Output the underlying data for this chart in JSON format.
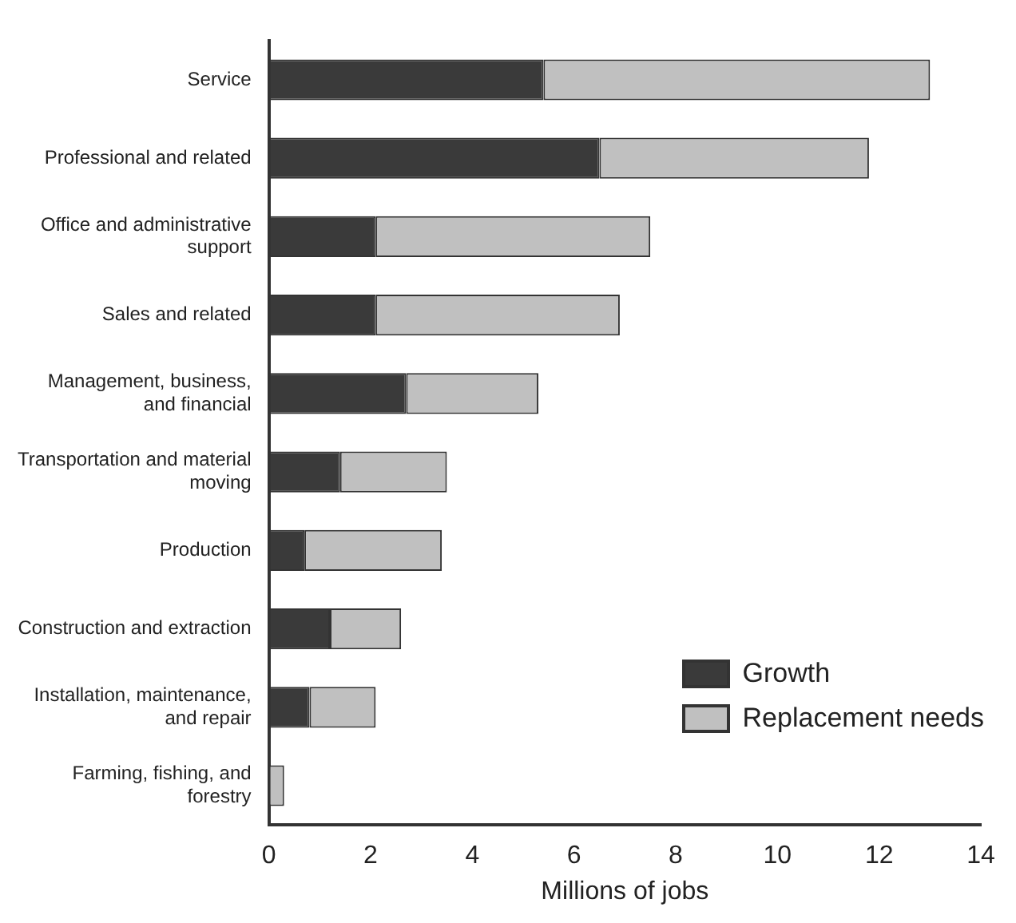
{
  "chart_data": {
    "type": "bar",
    "orientation": "horizontal",
    "stacked": true,
    "xlabel": "Millions of jobs",
    "categories": [
      "Service",
      "Professional and related",
      "Office and administrative support",
      "Sales and related",
      "Management, business, and financial",
      "Transportation and material moving",
      "Production",
      "Construction and extraction",
      "Installation, maintenance, and repair",
      "Farming, fishing, and forestry"
    ],
    "series": [
      {
        "name": "Growth",
        "color": "#3a3a3a",
        "values": [
          5.4,
          6.5,
          2.1,
          2.1,
          2.7,
          1.4,
          0.7,
          1.2,
          0.8,
          0
        ]
      },
      {
        "name": "Replacement needs",
        "color": "#c0c0c0",
        "values": [
          7.6,
          5.3,
          5.4,
          4.8,
          2.6,
          2.1,
          2.7,
          1.4,
          1.3,
          0.3
        ]
      }
    ],
    "xlim": [
      0,
      14
    ],
    "xticks": [
      0,
      2,
      4,
      6,
      8,
      10,
      12,
      14
    ],
    "grid": false,
    "legend": "bottom right"
  }
}
